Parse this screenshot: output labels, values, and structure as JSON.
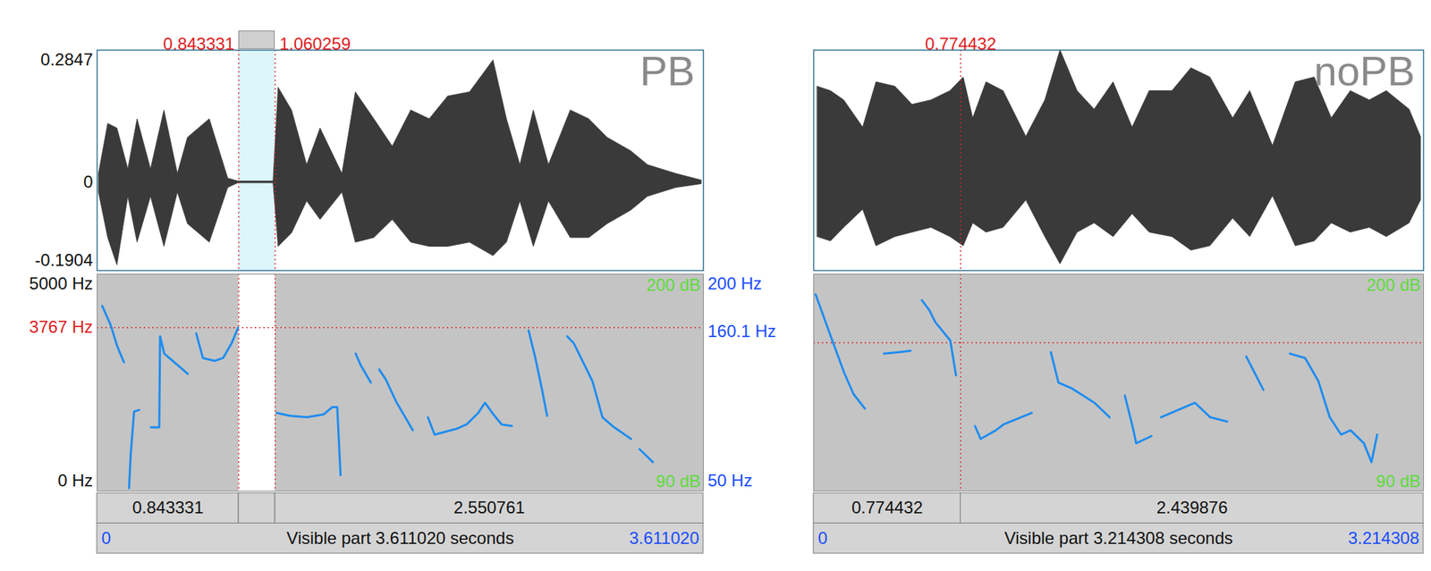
{
  "chart_data": [
    {
      "type": "spectrogram",
      "title": "PB",
      "xlim": [
        0,
        3.61102
      ],
      "xticks": [
        {
          "value": 0,
          "label": "0"
        },
        {
          "value": 3.61102,
          "label": "3.611020"
        }
      ],
      "visible_label": "Visible part 3.611020 seconds",
      "cursors": [
        {
          "value": 0.843331,
          "label": "0.843331"
        },
        {
          "value": 1.060259,
          "label": "1.060259"
        }
      ],
      "waveform": {
        "ylim": [
          -0.1904,
          0.2847
        ],
        "yticks": [
          -0.1904,
          0,
          0.2847
        ],
        "color": "#3a3a3a",
        "t": [
          0.01,
          0.065,
          0.12,
          0.185,
          0.24,
          0.32,
          0.4,
          0.48,
          0.54,
          0.67,
          0.78,
          0.84,
          1.05,
          1.08,
          1.16,
          1.25,
          1.33,
          1.46,
          1.54,
          1.65,
          1.76,
          1.87,
          1.98,
          2.09,
          2.22,
          2.36,
          2.44,
          2.52,
          2.6,
          2.69,
          2.82,
          2.93,
          3.04,
          3.18,
          3.28,
          3.45,
          3.6
        ],
        "upper": [
          0.018,
          0.126,
          0.116,
          0.028,
          0.136,
          0.028,
          0.155,
          0.018,
          0.096,
          0.136,
          0.008,
          0.002,
          0.002,
          0.204,
          0.155,
          0.037,
          0.116,
          0.018,
          0.194,
          0.136,
          0.077,
          0.155,
          0.136,
          0.185,
          0.194,
          0.263,
          0.136,
          0.037,
          0.155,
          0.037,
          0.155,
          0.136,
          0.096,
          0.067,
          0.037,
          0.018,
          0.004
        ],
        "lower": [
          -0.022,
          -0.12,
          -0.179,
          -0.031,
          -0.13,
          -0.031,
          -0.139,
          -0.022,
          -0.09,
          -0.13,
          -0.012,
          -0.002,
          -0.002,
          -0.139,
          -0.11,
          -0.041,
          -0.081,
          -0.022,
          -0.13,
          -0.12,
          -0.081,
          -0.13,
          -0.139,
          -0.139,
          -0.13,
          -0.159,
          -0.13,
          -0.041,
          -0.139,
          -0.041,
          -0.12,
          -0.12,
          -0.09,
          -0.061,
          -0.031,
          -0.012,
          -0.004
        ]
      },
      "spectrogram": {
        "ylim": [
          0,
          5000
        ],
        "yticks": [
          {
            "value": 0,
            "label": "0 Hz"
          },
          {
            "value": 5000,
            "label": "5000 Hz"
          }
        ],
        "cursor": {
          "value": 3767,
          "label": "3767 Hz"
        },
        "db_labels": {
          "top": "200 dB",
          "bottom": "90 dB"
        }
      },
      "pitch": {
        "ylim": [
          50,
          200
        ],
        "yticks": [
          {
            "value": 50,
            "label": "50 Hz"
          },
          {
            "value": 200,
            "label": "200 Hz"
          }
        ],
        "cursor": {
          "value": 160.1,
          "label": "160.1 Hz"
        },
        "color": "#1e8cf0",
        "segments": [
          {
            "t": [
              0.03,
              0.08,
              0.12,
              0.16
            ],
            "values": [
              178,
              165,
              150,
              139
            ]
          },
          {
            "t": [
              0.19,
              0.2,
              0.22,
              0.25
            ],
            "values": [
              52,
              75,
              105,
              106
            ]
          },
          {
            "t": [
              0.32,
              0.37,
              0.375,
              0.4,
              0.45,
              0.5,
              0.54
            ],
            "values": [
              94,
              94,
              157,
              145,
              140,
              135,
              131
            ]
          },
          {
            "t": [
              0.59,
              0.63,
              0.7,
              0.75,
              0.8,
              0.84
            ],
            "values": [
              159,
              142,
              140,
              142,
              152,
              163
            ]
          },
          {
            "t": [
              1.07,
              1.15,
              1.25,
              1.35,
              1.4,
              1.43,
              1.45
            ],
            "values": [
              104,
              102,
              101,
              103,
              108,
              108,
              61
            ]
          },
          {
            "t": [
              1.54,
              1.57,
              1.63
            ],
            "values": [
              145,
              137,
              125
            ]
          },
          {
            "t": [
              1.68,
              1.72,
              1.78,
              1.84,
              1.88
            ],
            "values": [
              134,
              127,
              112,
              100,
              92
            ]
          },
          {
            "t": [
              1.97,
              2.01,
              2.14,
              2.2,
              2.27,
              2.31,
              2.36,
              2.41,
              2.47
            ],
            "values": [
              101,
              89,
              93,
              96,
              104,
              111,
              103,
              96,
              95
            ]
          },
          {
            "t": [
              2.57,
              2.61,
              2.65,
              2.68
            ],
            "values": [
              161,
              142,
              120,
              102
            ]
          },
          {
            "t": [
              2.8,
              2.84,
              2.95,
              3.01,
              3.08,
              3.18
            ],
            "values": [
              157,
              152,
              126,
              101,
              94,
              86
            ]
          },
          {
            "t": [
              3.23,
              3.31
            ],
            "values": [
              79,
              70
            ]
          }
        ]
      },
      "intervals": [
        {
          "start": 0,
          "end": 0.843331,
          "label": "0.843331"
        },
        {
          "start": 0.843331,
          "end": 1.060259,
          "label": null
        },
        {
          "start": 1.060259,
          "end": 3.61102,
          "label": "2.550761"
        }
      ]
    },
    {
      "type": "spectrogram",
      "title": "noPB",
      "xlim": [
        0,
        3.214308
      ],
      "xticks": [
        {
          "value": 0,
          "label": "0"
        },
        {
          "value": 3.214308,
          "label": "3.214308"
        }
      ],
      "visible_label": "Visible part 3.214308 seconds",
      "cursors": [
        {
          "value": 0.774432,
          "label": "0.774432"
        }
      ],
      "waveform": {
        "ylim": [
          -0.25,
          0.3
        ],
        "yticks": [],
        "color": "#3a3a3a",
        "t": [
          0.02,
          0.09,
          0.16,
          0.26,
          0.33,
          0.43,
          0.52,
          0.62,
          0.72,
          0.79,
          0.84,
          0.91,
          1.0,
          1.12,
          1.22,
          1.3,
          1.39,
          1.48,
          1.58,
          1.68,
          1.77,
          1.89,
          1.99,
          2.09,
          2.21,
          2.3,
          2.42,
          2.54,
          2.64,
          2.73,
          2.83,
          2.93,
          3.02,
          3.14,
          3.2
        ],
        "upper": [
          0.209,
          0.198,
          0.175,
          0.107,
          0.22,
          0.209,
          0.164,
          0.175,
          0.198,
          0.232,
          0.13,
          0.22,
          0.198,
          0.084,
          0.175,
          0.3,
          0.198,
          0.152,
          0.22,
          0.107,
          0.198,
          0.198,
          0.255,
          0.232,
          0.13,
          0.198,
          0.061,
          0.22,
          0.232,
          0.13,
          0.198,
          0.175,
          0.198,
          0.152,
          0.084
        ],
        "lower": [
          -0.166,
          -0.177,
          -0.143,
          -0.098,
          -0.189,
          -0.166,
          -0.155,
          -0.143,
          -0.166,
          -0.189,
          -0.132,
          -0.155,
          -0.143,
          -0.075,
          -0.166,
          -0.234,
          -0.155,
          -0.132,
          -0.166,
          -0.109,
          -0.155,
          -0.166,
          -0.2,
          -0.189,
          -0.12,
          -0.166,
          -0.064,
          -0.189,
          -0.177,
          -0.132,
          -0.155,
          -0.143,
          -0.166,
          -0.132,
          -0.075
        ]
      },
      "spectrogram": {
        "ylim": [
          0,
          5000
        ],
        "yticks": [],
        "cursor": {
          "value": 3417
        },
        "db_labels": {
          "top": "200 dB",
          "bottom": "90 dB"
        }
      },
      "pitch": {
        "ylim": [
          50,
          200
        ],
        "yticks": [],
        "color": "#1e8cf0",
        "segments": [
          {
            "t": [
              0.01,
              0.09,
              0.16,
              0.21,
              0.27
            ],
            "values": [
              186,
              157,
              132,
              117,
              107
            ]
          },
          {
            "t": [
              0.37,
              0.45,
              0.51
            ],
            "values": [
              145,
              146,
              147
            ]
          },
          {
            "t": [
              0.57,
              0.61,
              0.64,
              0.72,
              0.75
            ],
            "values": [
              182,
              175,
              167,
              154,
              130
            ]
          },
          {
            "t": [
              0.85,
              0.88,
              0.96,
              1.0,
              1.15
            ],
            "values": [
              95,
              86,
              92,
              96,
              104
            ]
          },
          {
            "t": [
              1.25,
              1.29,
              1.36,
              1.48,
              1.56
            ],
            "values": [
              146,
              125,
              121,
              111,
              101
            ]
          },
          {
            "t": [
              1.64,
              1.68,
              1.7,
              1.78
            ],
            "values": [
              116,
              95,
              83,
              88
            ]
          },
          {
            "t": [
              1.83,
              1.92,
              2.01,
              2.09,
              2.18
            ],
            "values": [
              101,
              106,
              111,
              101,
              98
            ]
          },
          {
            "t": [
              2.28,
              2.37
            ],
            "values": [
              143,
              120
            ]
          },
          {
            "t": [
              2.51,
              2.59,
              2.66,
              2.72,
              2.78,
              2.83,
              2.9,
              2.94,
              2.97
            ],
            "values": [
              145,
              142,
              126,
              101,
              89,
              92,
              83,
              70,
              89
            ]
          }
        ]
      },
      "intervals": [
        {
          "start": 0,
          "end": 0.774432,
          "label": "0.774432"
        },
        {
          "start": 0.774432,
          "end": 3.214308,
          "label": "2.439876"
        }
      ]
    }
  ]
}
